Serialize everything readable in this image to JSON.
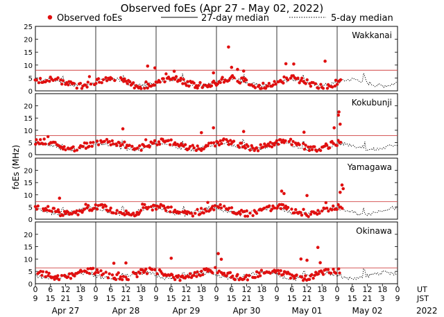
{
  "title": "Observed foEs (Apr 27 - May 02, 2022)",
  "legend": {
    "observed_label": "Observed foEs",
    "median27_label": "27-day median",
    "median5_label": "5-day median"
  },
  "y_axis_label": "foEs (MHz)",
  "ut_label": "UT",
  "jst_label": "JST",
  "year_label": "2022",
  "colors": {
    "observed": "#e01010",
    "median27": "#d04040",
    "median5": "#000000",
    "axis": "#000000",
    "grid": "#000000"
  },
  "hour_ticks_ut": [
    "0",
    "6",
    "12",
    "18",
    "0",
    "6",
    "12",
    "18",
    "0",
    "6",
    "12",
    "18",
    "0",
    "6",
    "12",
    "18",
    "0",
    "6",
    "12",
    "18",
    "0",
    "6",
    "12",
    "18",
    "0"
  ],
  "hour_ticks_jst": [
    "9",
    "15",
    "21",
    "3",
    "9",
    "15",
    "21",
    "3",
    "9",
    "15",
    "21",
    "3",
    "9",
    "15",
    "21",
    "3",
    "9",
    "15",
    "21",
    "3",
    "9",
    "15",
    "21",
    "3",
    "9"
  ],
  "day_labels": [
    "Apr 27",
    "Apr 28",
    "Apr 29",
    "Apr 30",
    "May 01",
    "May 02"
  ],
  "chart_data": [
    {
      "type": "scatter",
      "station": "Wakkanai",
      "ylim": [
        0,
        25
      ],
      "yticks": [
        0,
        5,
        10,
        15,
        20,
        25
      ],
      "median27": 8.0,
      "observed_until_day": 5.1,
      "base_level": 3.3,
      "outliers": [
        [
          1.86,
          9.6
        ],
        [
          1.98,
          8.9
        ],
        [
          2.3,
          7.6
        ],
        [
          2.95,
          7.0
        ],
        [
          3.2,
          17.0
        ],
        [
          3.25,
          9.1
        ],
        [
          3.45,
          7.7
        ],
        [
          3.35,
          8.3
        ],
        [
          4.15,
          10.5
        ],
        [
          4.28,
          10.4
        ],
        [
          4.8,
          11.5
        ]
      ]
    },
    {
      "type": "scatter",
      "station": "Kokubunji",
      "ylim": [
        0,
        25
      ],
      "yticks": [
        0,
        5,
        10,
        15,
        20
      ],
      "median27": 7.8,
      "observed_until_day": 5.1,
      "base_level": 4.0,
      "outliers": [
        [
          1.45,
          10.6
        ],
        [
          2.75,
          9.0
        ],
        [
          2.95,
          11.0
        ],
        [
          3.45,
          9.5
        ],
        [
          4.45,
          9.2
        ],
        [
          4.95,
          11.0
        ],
        [
          5.02,
          16.2
        ],
        [
          5.05,
          12.5
        ],
        [
          5.03,
          17.5
        ]
      ]
    },
    {
      "type": "scatter",
      "station": "Yamagawa",
      "ylim": [
        0,
        25
      ],
      "yticks": [
        0,
        5,
        10,
        15,
        20
      ],
      "median27": 7.2,
      "observed_until_day": 5.12,
      "base_level": 3.6,
      "outliers": [
        [
          0.4,
          8.6
        ],
        [
          4.08,
          11.5
        ],
        [
          4.12,
          10.5
        ],
        [
          4.5,
          9.7
        ],
        [
          5.05,
          11.0
        ],
        [
          5.08,
          14.0
        ],
        [
          5.1,
          12.5
        ]
      ]
    },
    {
      "type": "scatter",
      "station": "Okinawa",
      "ylim": [
        0,
        25
      ],
      "yticks": [
        0,
        5,
        10,
        15,
        20
      ],
      "median27": 6.4,
      "observed_until_day": 5.08,
      "base_level": 3.8,
      "outliers": [
        [
          1.3,
          8.3
        ],
        [
          1.5,
          8.4
        ],
        [
          2.25,
          10.3
        ],
        [
          3.03,
          12.2
        ],
        [
          3.08,
          9.9
        ],
        [
          4.4,
          10.0
        ],
        [
          4.68,
          14.7
        ],
        [
          4.72,
          8.5
        ],
        [
          4.5,
          9.5
        ]
      ]
    }
  ]
}
